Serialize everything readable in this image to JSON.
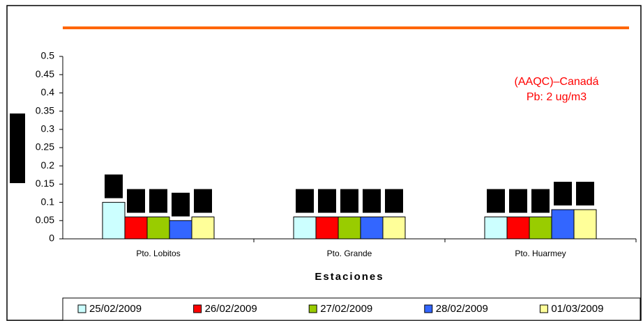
{
  "chart_data": {
    "type": "bar",
    "annotation": [
      "(AAQC)–Canadá",
      "Pb: 2 ug/m3"
    ],
    "xlabel": "Estaciones",
    "categories": [
      "Pto. Lobitos",
      "Pto. Grande",
      "Pto. Huarmey"
    ],
    "series": [
      {
        "name": "25/02/2009",
        "color": "#ccffff",
        "values": [
          0.1,
          0.06,
          0.06
        ]
      },
      {
        "name": "26/02/2009",
        "color": "#ff0000",
        "values": [
          0.06,
          0.06,
          0.06
        ]
      },
      {
        "name": "27/02/2009",
        "color": "#99cc00",
        "values": [
          0.06,
          0.06,
          0.06
        ]
      },
      {
        "name": "28/02/2009",
        "color": "#3366ff",
        "values": [
          0.05,
          0.06,
          0.08
        ]
      },
      {
        "name": "01/03/2009",
        "color": "#ffff99",
        "values": [
          0.06,
          0.06,
          0.08
        ]
      }
    ],
    "ylim": [
      0,
      0.5
    ],
    "yticks": [
      0,
      0.05,
      0.1,
      0.15,
      0.2,
      0.25,
      0.3,
      0.35,
      0.4,
      0.45,
      0.5
    ],
    "legend": "bottom"
  }
}
